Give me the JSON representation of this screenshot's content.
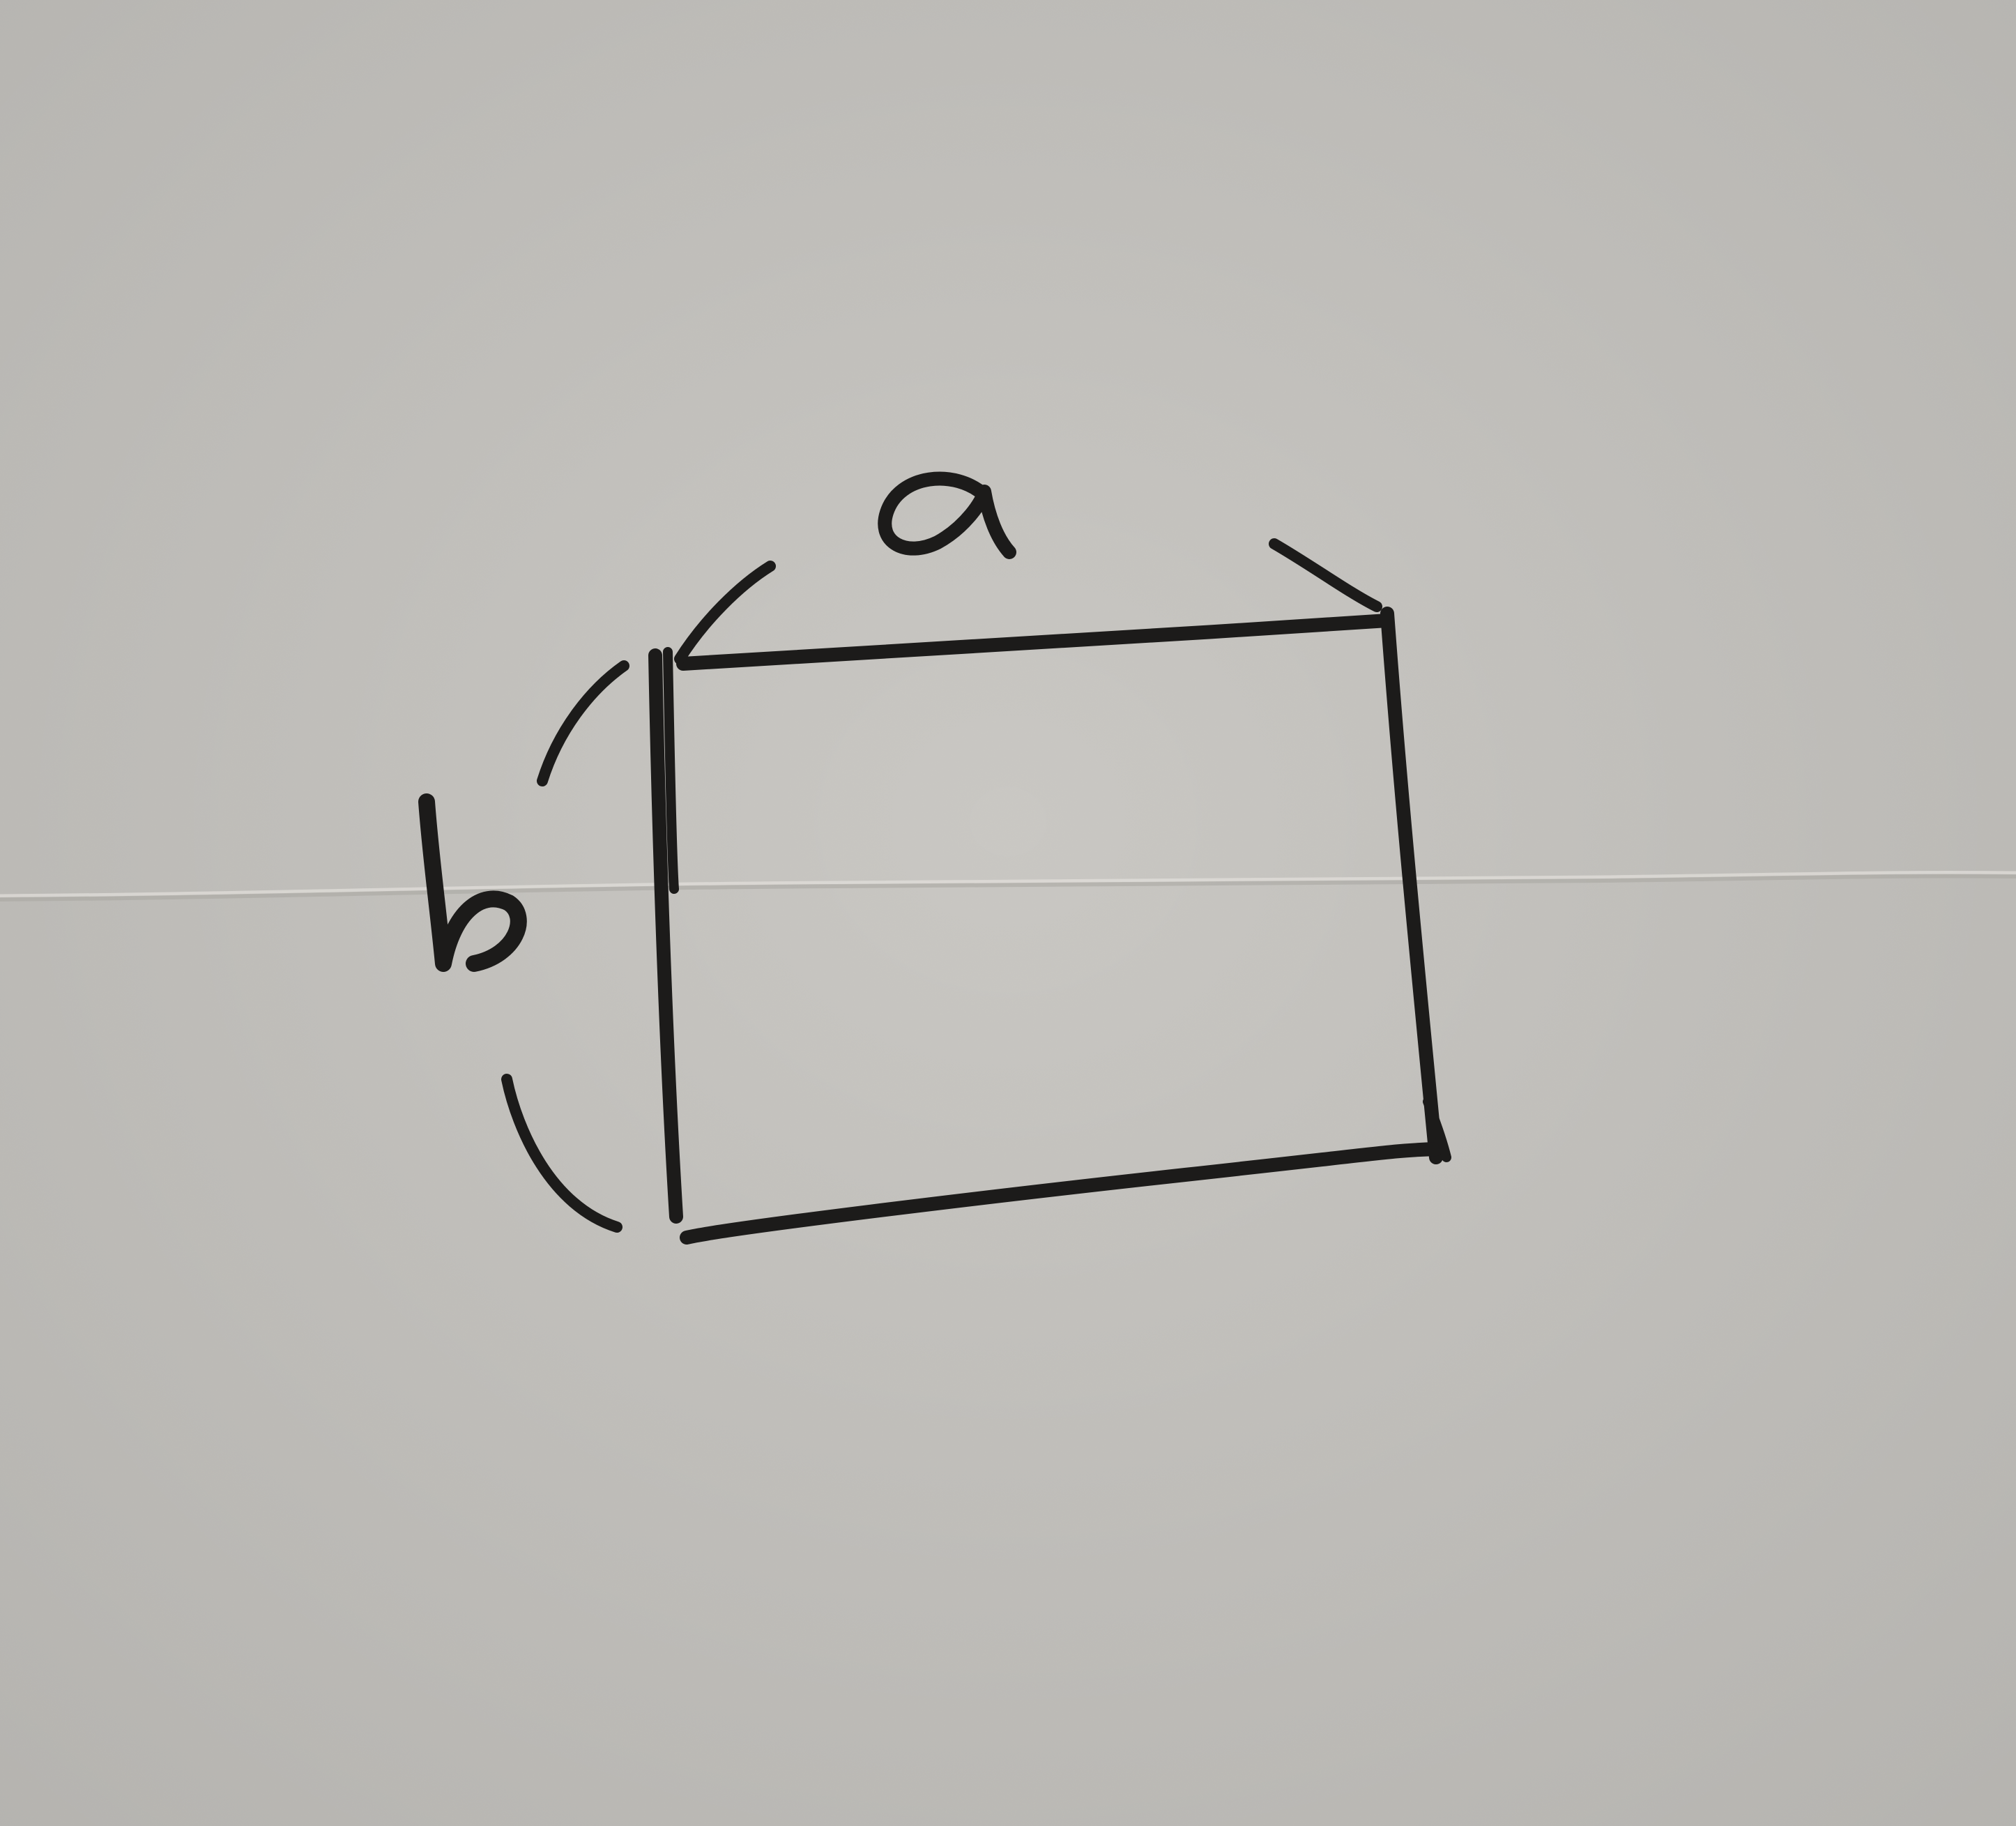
{
  "diagram": {
    "kind": "hand-drawn rectangle with dimension labels",
    "labels": {
      "width": "a",
      "height": "b"
    }
  },
  "colors": {
    "paper": "#cac8c3",
    "paper_shade": "#b9b7b2",
    "ink": "#1c1b1a",
    "fold": "#a8a6a1"
  }
}
